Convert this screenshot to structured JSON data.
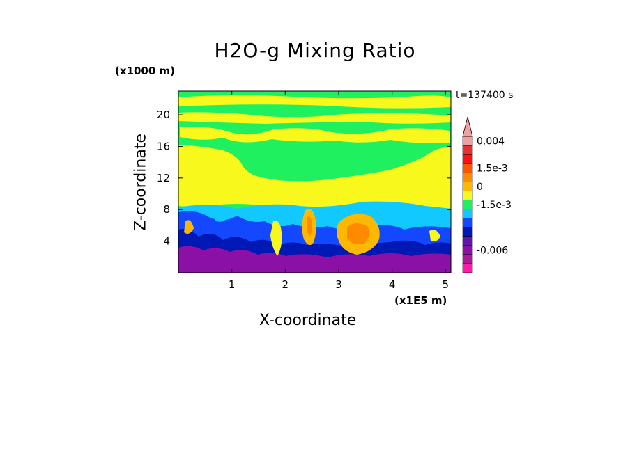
{
  "chart_data": {
    "type": "heatmap",
    "title": "H2O-g Mixing Ratio",
    "xlabel": "X-coordinate",
    "ylabel": "Z-coordinate",
    "x_unit": "(x1E5 m)",
    "y_unit": "(x1000 m)",
    "time_label": "t=137400 s",
    "xlim": [
      0,
      5.1
    ],
    "ylim": [
      0,
      23
    ],
    "xticks": [
      1,
      2,
      3,
      4,
      5
    ],
    "yticks": [
      4,
      8,
      12,
      16,
      20
    ],
    "colorbar": {
      "labels": [
        {
          "text": "0.004",
          "level": 14
        },
        {
          "text": "1.5e-3",
          "level": 11
        },
        {
          "text": "0",
          "level": 9
        },
        {
          "text": "-1.5e-3",
          "level": 7
        },
        {
          "text": "-0.006",
          "level": 2
        }
      ],
      "colors": [
        "#ff1aaa",
        "#b0189a",
        "#8b10a6",
        "#6214b0",
        "#0018b4",
        "#1448ff",
        "#11c8ff",
        "#1ef060",
        "#f8f81c",
        "#ffb800",
        "#ff8a00",
        "#ff5500",
        "#ff1010",
        "#e83030",
        "#f0a0a0"
      ],
      "extend_max": true
    },
    "colors": {
      "deep_purple": "#8b10a6",
      "dark_blue": "#0018b4",
      "blue": "#1448ff",
      "cyan": "#11c8ff",
      "green": "#1ef060",
      "yellow": "#f8f81c",
      "orange": "#ffb800",
      "dark_orange": "#ff8a00"
    }
  }
}
